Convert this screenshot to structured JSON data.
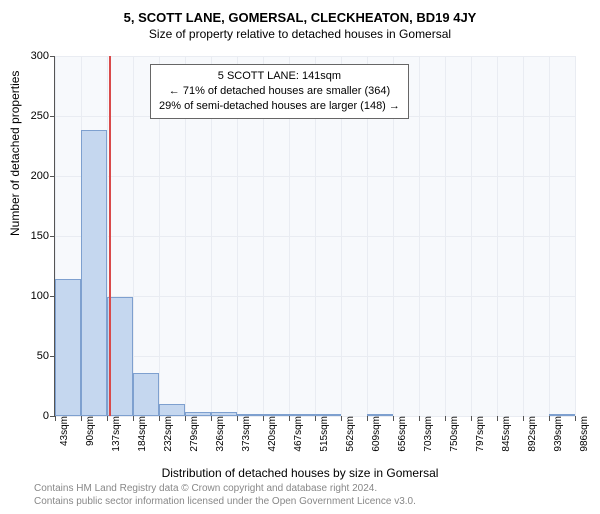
{
  "title": "5, SCOTT LANE, GOMERSAL, CLECKHEATON, BD19 4JY",
  "subtitle": "Size of property relative to detached houses in Gomersal",
  "ylabel": "Number of detached properties",
  "xlabel": "Distribution of detached houses by size in Gomersal",
  "chart": {
    "type": "histogram",
    "background_color": "#f7f9fc",
    "grid_color": "#e9ecf2",
    "axis_color": "#555555",
    "bar_fill": "#c5d7ef",
    "bar_border": "#7ea0cf",
    "marker_color": "#d94a4a",
    "marker_x": 141,
    "x_start": 43,
    "x_bin_width": 47,
    "y_max": 300,
    "y_ticks": [
      0,
      50,
      100,
      150,
      200,
      250,
      300
    ],
    "x_tick_labels": [
      "43sqm",
      "90sqm",
      "137sqm",
      "184sqm",
      "232sqm",
      "279sqm",
      "326sqm",
      "373sqm",
      "420sqm",
      "467sqm",
      "515sqm",
      "562sqm",
      "609sqm",
      "656sqm",
      "703sqm",
      "750sqm",
      "797sqm",
      "845sqm",
      "892sqm",
      "939sqm",
      "986sqm"
    ],
    "values": [
      114,
      238,
      99,
      36,
      10,
      3,
      3,
      2,
      2,
      2,
      2,
      0,
      1,
      0,
      0,
      0,
      0,
      0,
      0,
      1
    ],
    "title_fontsize": 13,
    "subtitle_fontsize": 12,
    "label_fontsize": 12,
    "tick_fontsize": 11
  },
  "info_box": {
    "line1": "5 SCOTT LANE: 141sqm",
    "line2": "← 71% of detached houses are smaller (364)",
    "line3": "29% of semi-detached houses are larger (148) →"
  },
  "footer": {
    "line1": "Contains HM Land Registry data © Crown copyright and database right 2024.",
    "line2": "Contains public sector information licensed under the Open Government Licence v3.0."
  }
}
